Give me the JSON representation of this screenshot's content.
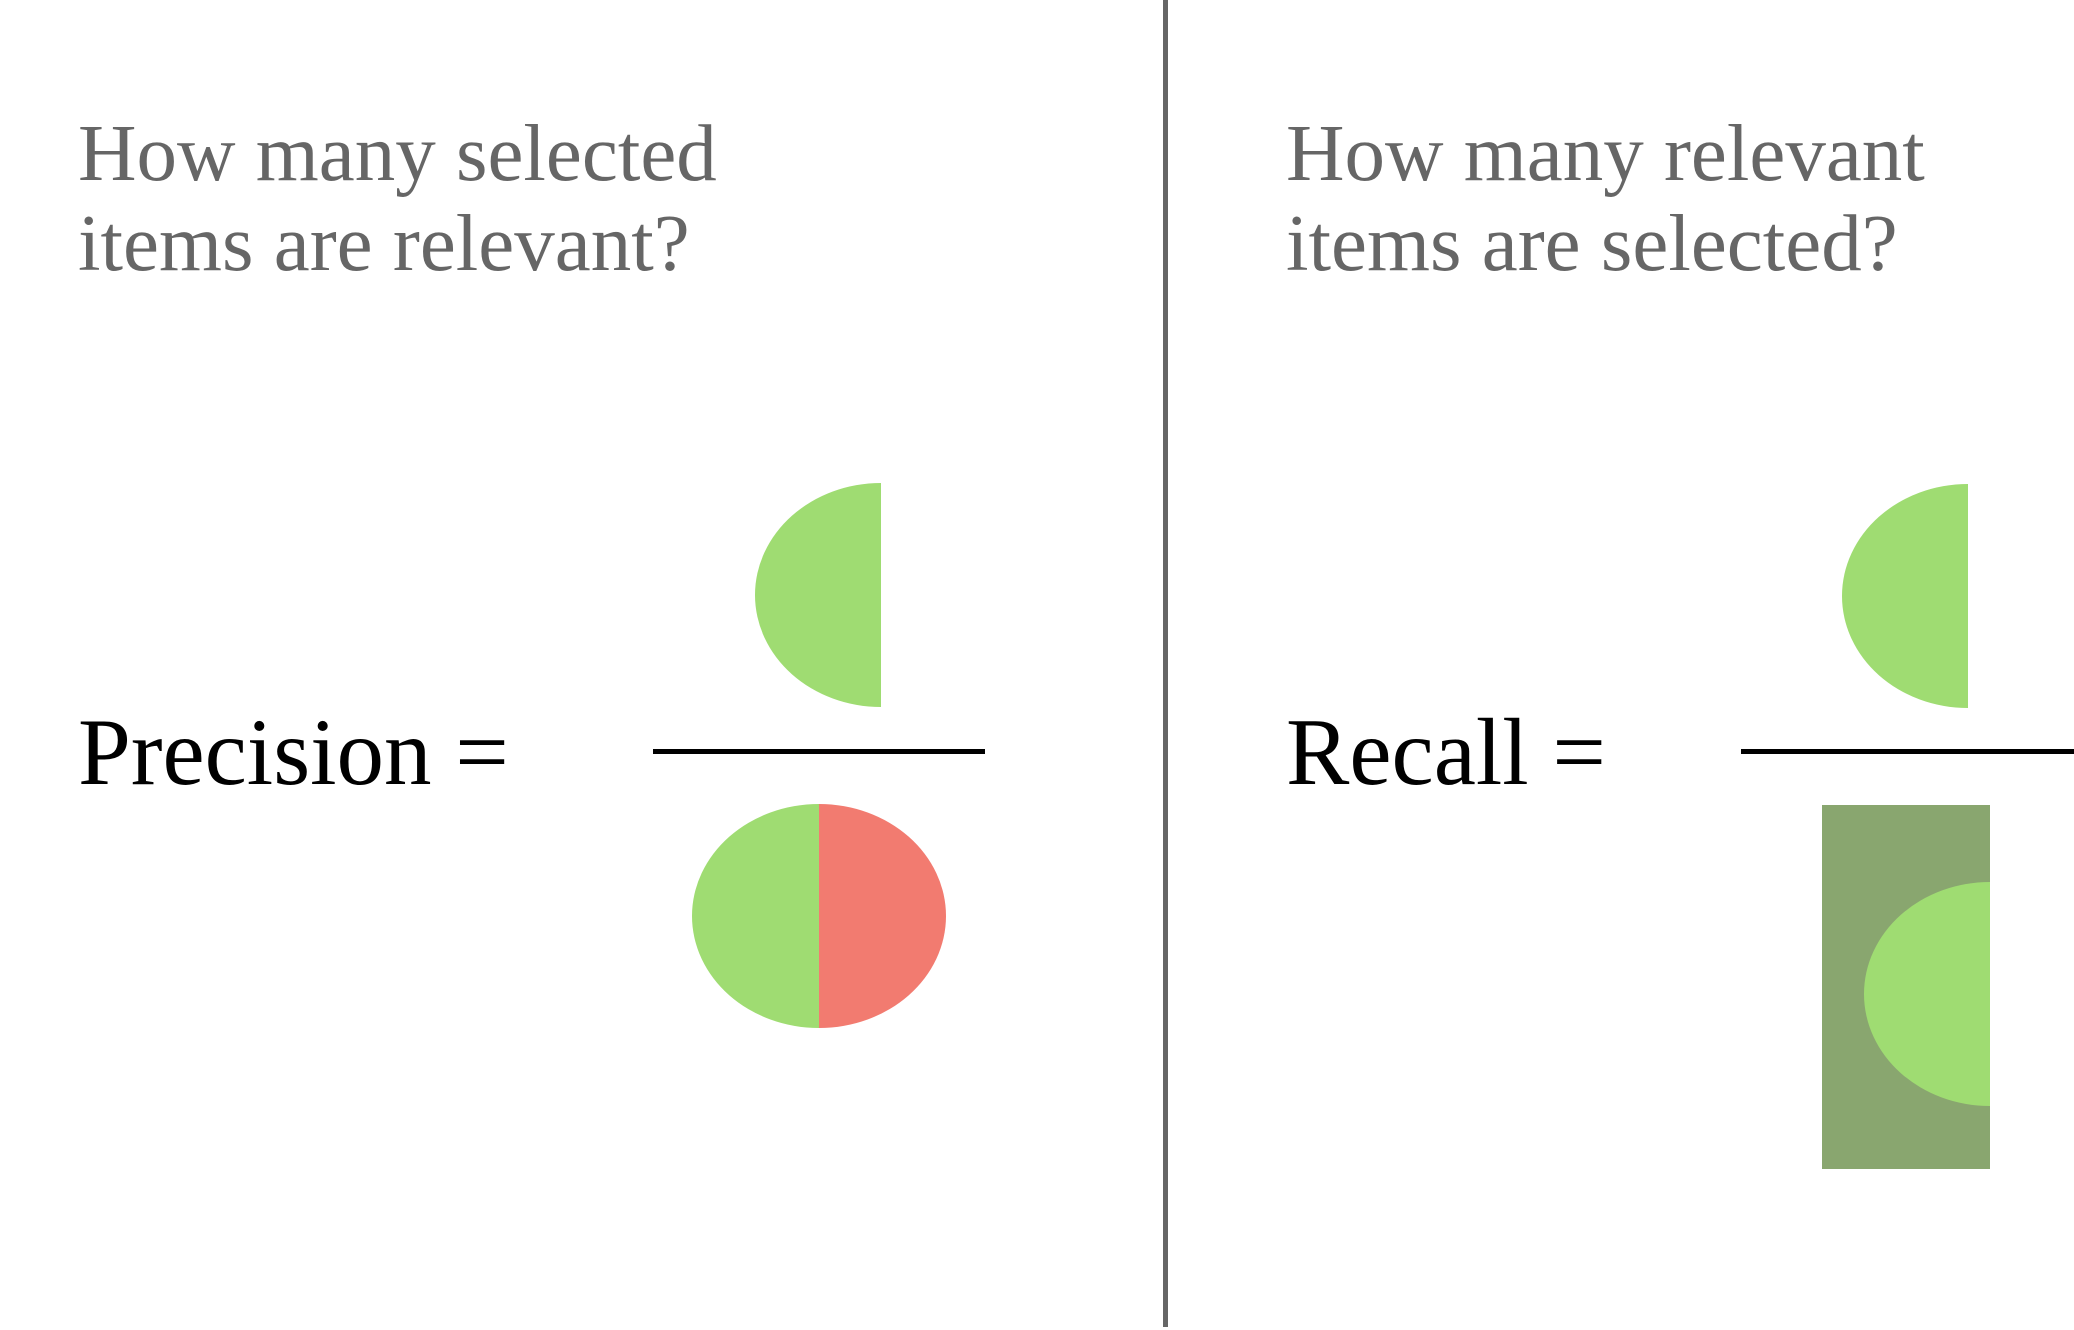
{
  "precision": {
    "question": "How many selected\nitems are relevant?",
    "label": "Precision ="
  },
  "recall": {
    "question": "How many relevant\nitems are selected?",
    "label": "Recall ="
  },
  "colors": {
    "true_positive": "#9fdc72",
    "false_positive": "#f27b70",
    "false_negative": "#89a66f",
    "divider": "#666666",
    "question_text": "#666666",
    "formula_text": "#000000"
  },
  "icons": {
    "precision_numerator": "half-circle-left-green",
    "precision_denominator": "full-circle-green-red",
    "recall_numerator": "half-circle-left-green",
    "recall_denominator": "dark-green-rect-with-green-half-circle"
  }
}
